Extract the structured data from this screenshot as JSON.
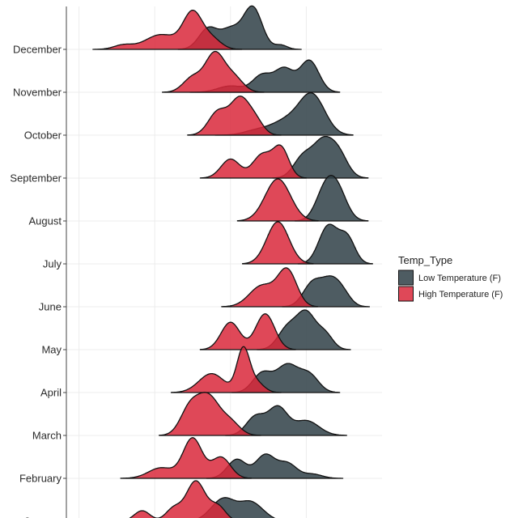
{
  "chart_data": {
    "type": "ridgeline",
    "title": "",
    "xlabel": "",
    "ylabel": "",
    "xlim": [
      0,
      100
    ],
    "categories": [
      "January",
      "February",
      "March",
      "April",
      "May",
      "June",
      "July",
      "August",
      "September",
      "October",
      "November",
      "December"
    ],
    "legend": {
      "title": "Temp_Type",
      "position": "right",
      "entries": [
        {
          "label": "Low Temperature (F)",
          "color": "#2f3f47"
        },
        {
          "label": "High Temperature (F)",
          "color": "#d9283b"
        }
      ]
    },
    "series": [
      {
        "name": "Low Temperature (F)",
        "color": "#2f3f47",
        "ridges": {
          "January": [
            {
              "mu": 50,
              "sd": 4,
              "h": 0.55
            },
            {
              "mu": 58,
              "sd": 3,
              "h": 0.35
            },
            {
              "mu": 62,
              "sd": 3,
              "h": 0.15
            }
          ],
          "February": [
            {
              "mu": 54,
              "sd": 3,
              "h": 0.45
            },
            {
              "mu": 63,
              "sd": 3,
              "h": 0.55
            },
            {
              "mu": 70,
              "sd": 3,
              "h": 0.35
            },
            {
              "mu": 78,
              "sd": 3,
              "h": 0.1
            }
          ],
          "March": [
            {
              "mu": 60,
              "sd": 3,
              "h": 0.45
            },
            {
              "mu": 67,
              "sd": 3,
              "h": 0.65
            },
            {
              "mu": 76,
              "sd": 4,
              "h": 0.35
            }
          ],
          "April": [
            {
              "mu": 62,
              "sd": 3,
              "h": 0.45
            },
            {
              "mu": 70,
              "sd": 3.5,
              "h": 0.65
            },
            {
              "mu": 77,
              "sd": 3,
              "h": 0.4
            }
          ],
          "May": [
            {
              "mu": 70,
              "sd": 3,
              "h": 0.5
            },
            {
              "mu": 76,
              "sd": 3,
              "h": 0.85
            },
            {
              "mu": 82,
              "sd": 2.5,
              "h": 0.35
            }
          ],
          "June": [
            {
              "mu": 78,
              "sd": 3,
              "h": 0.55
            },
            {
              "mu": 84,
              "sd": 3,
              "h": 0.6
            },
            {
              "mu": 88,
              "sd": 2.5,
              "h": 0.2
            }
          ],
          "July": [
            {
              "mu": 83,
              "sd": 3,
              "h": 0.9
            },
            {
              "mu": 89,
              "sd": 2.5,
              "h": 0.6
            }
          ],
          "August": [
            {
              "mu": 82,
              "sd": 3,
              "h": 0.7
            },
            {
              "mu": 86,
              "sd": 3,
              "h": 0.65
            }
          ],
          "September": [
            {
              "mu": 75,
              "sd": 3,
              "h": 0.5
            },
            {
              "mu": 81,
              "sd": 3,
              "h": 0.75
            },
            {
              "mu": 86,
              "sd": 3,
              "h": 0.6
            }
          ],
          "October": [
            {
              "mu": 60,
              "sd": 4,
              "h": 0.1
            },
            {
              "mu": 70,
              "sd": 5,
              "h": 0.35
            },
            {
              "mu": 78,
              "sd": 4,
              "h": 0.9
            }
          ],
          "November": [
            {
              "mu": 52,
              "sd": 4,
              "h": 0.15
            },
            {
              "mu": 62,
              "sd": 3,
              "h": 0.4
            },
            {
              "mu": 69,
              "sd": 3,
              "h": 0.55
            },
            {
              "mu": 77,
              "sd": 3,
              "h": 0.75
            }
          ],
          "December": [
            {
              "mu": 45,
              "sd": 3,
              "h": 0.5
            },
            {
              "mu": 52,
              "sd": 3,
              "h": 0.45
            },
            {
              "mu": 59,
              "sd": 3,
              "h": 1.0
            },
            {
              "mu": 68,
              "sd": 2,
              "h": 0.1
            }
          ]
        }
      },
      {
        "name": "High Temperature (F)",
        "color": "#d9283b",
        "ridges": {
          "January": [
            {
              "mu": 24,
              "sd": 2.5,
              "h": 0.25
            },
            {
              "mu": 34,
              "sd": 2.5,
              "h": 0.3
            },
            {
              "mu": 41,
              "sd": 3,
              "h": 0.95
            },
            {
              "mu": 48,
              "sd": 2.5,
              "h": 0.35
            }
          ],
          "February": [
            {
              "mu": 30,
              "sd": 4,
              "h": 0.25
            },
            {
              "mu": 40,
              "sd": 3,
              "h": 0.95
            },
            {
              "mu": 49,
              "sd": 3,
              "h": 0.5
            }
          ],
          "March": [
            {
              "mu": 39,
              "sd": 3,
              "h": 0.6
            },
            {
              "mu": 45,
              "sd": 3.5,
              "h": 0.9
            },
            {
              "mu": 52,
              "sd": 3,
              "h": 0.3
            }
          ],
          "April": [
            {
              "mu": 46,
              "sd": 4,
              "h": 0.45
            },
            {
              "mu": 56,
              "sd": 2,
              "h": 1.0
            },
            {
              "mu": 60,
              "sd": 2.5,
              "h": 0.25
            }
          ],
          "May": [
            {
              "mu": 52,
              "sd": 3,
              "h": 0.65
            },
            {
              "mu": 63,
              "sd": 3,
              "h": 0.85
            }
          ],
          "June": [
            {
              "mu": 62,
              "sd": 4,
              "h": 0.5
            },
            {
              "mu": 70,
              "sd": 3,
              "h": 0.85
            }
          ],
          "July": [
            {
              "mu": 67,
              "sd": 3.5,
              "h": 1.0
            }
          ],
          "August": [
            {
              "mu": 67,
              "sd": 4,
              "h": 1.0
            }
          ],
          "September": [
            {
              "mu": 52,
              "sd": 3,
              "h": 0.45
            },
            {
              "mu": 62,
              "sd": 3,
              "h": 0.55
            },
            {
              "mu": 68,
              "sd": 2.5,
              "h": 0.7
            }
          ],
          "October": [
            {
              "mu": 48,
              "sd": 3,
              "h": 0.55
            },
            {
              "mu": 55,
              "sd": 3,
              "h": 0.85
            },
            {
              "mu": 60,
              "sd": 2.5,
              "h": 0.3
            }
          ],
          "November": [
            {
              "mu": 40,
              "sd": 3,
              "h": 0.35
            },
            {
              "mu": 47,
              "sd": 3,
              "h": 0.9
            },
            {
              "mu": 53,
              "sd": 3,
              "h": 0.35
            }
          ],
          "December": [
            {
              "mu": 18,
              "sd": 3,
              "h": 0.1
            },
            {
              "mu": 30,
              "sd": 5,
              "h": 0.35
            },
            {
              "mu": 40,
              "sd": 3,
              "h": 0.85
            },
            {
              "mu": 46,
              "sd": 3,
              "h": 0.25
            }
          ]
        }
      }
    ]
  }
}
